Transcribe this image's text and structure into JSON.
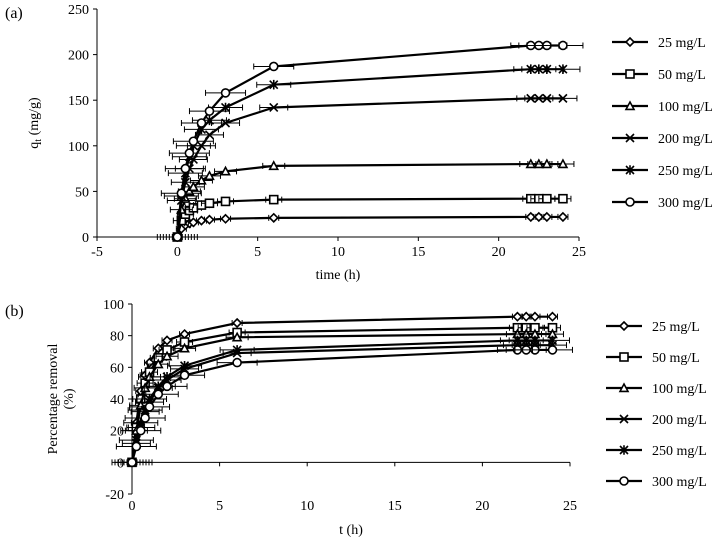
{
  "chart_data": [
    {
      "panel_label": "(a)",
      "type": "line",
      "xlabel": "time (h)",
      "ylabel": "q",
      "ylabel_sub": "t",
      "ylabel_unit": " (mg/g)",
      "xlim": [
        -5,
        25
      ],
      "ylim": [
        0,
        250
      ],
      "x_ticks": [
        -5,
        0,
        5,
        10,
        15,
        20,
        25
      ],
      "y_ticks": [
        0,
        50,
        100,
        150,
        200,
        250
      ],
      "grid": false,
      "legend_position": "right",
      "x": [
        0,
        0.25,
        0.5,
        0.75,
        1,
        1.5,
        2,
        3,
        6,
        22,
        22.5,
        23,
        24
      ],
      "series": [
        {
          "name": "25 mg/L",
          "marker": "diamond",
          "values": [
            0,
            9,
            13,
            15,
            16,
            18,
            19,
            20,
            21,
            22,
            22,
            22,
            22
          ]
        },
        {
          "name": "50 mg/L",
          "marker": "square",
          "values": [
            0,
            18,
            25,
            29,
            32,
            35,
            37,
            39,
            41,
            42,
            42,
            42,
            42
          ]
        },
        {
          "name": "100 mg/L",
          "marker": "triangle",
          "values": [
            0,
            30,
            42,
            50,
            55,
            62,
            67,
            72,
            78,
            80,
            80,
            80,
            80
          ]
        },
        {
          "name": "200 mg/L",
          "marker": "x",
          "values": [
            0,
            40,
            60,
            75,
            85,
            100,
            112,
            125,
            142,
            152,
            152,
            152,
            152
          ]
        },
        {
          "name": "250 mg/L",
          "marker": "star",
          "values": [
            0,
            45,
            70,
            88,
            100,
            118,
            128,
            142,
            167,
            184,
            184,
            184,
            184
          ]
        },
        {
          "name": "300 mg/L",
          "marker": "circle",
          "values": [
            0,
            48,
            75,
            92,
            105,
            125,
            138,
            158,
            187,
            210,
            210,
            210,
            210
          ]
        }
      ]
    },
    {
      "panel_label": "(b)",
      "type": "line",
      "xlabel": "t (h)",
      "ylabel": "Percentage removal",
      "ylabel_line2": "(%)",
      "xlim": [
        0,
        25
      ],
      "ylim": [
        -20,
        100
      ],
      "x_ticks": [
        0,
        5,
        10,
        15,
        20,
        25
      ],
      "y_ticks": [
        -20,
        0,
        20,
        40,
        60,
        80,
        100
      ],
      "grid": false,
      "legend_position": "right",
      "x": [
        0,
        0.25,
        0.5,
        0.75,
        1,
        1.5,
        2,
        3,
        6,
        22,
        22.5,
        23,
        24
      ],
      "series": [
        {
          "name": "25 mg/L",
          "marker": "diamond",
          "values": [
            0,
            25,
            45,
            55,
            63,
            72,
            77,
            81,
            88,
            92,
            92,
            92,
            92
          ]
        },
        {
          "name": "50 mg/L",
          "marker": "square",
          "values": [
            0,
            22,
            40,
            50,
            57,
            66,
            71,
            76,
            82,
            85,
            85,
            85,
            85
          ]
        },
        {
          "name": "100 mg/L",
          "marker": "triangle",
          "values": [
            0,
            20,
            36,
            47,
            54,
            62,
            67,
            72,
            79,
            81,
            81,
            81,
            81
          ]
        },
        {
          "name": "200 mg/L",
          "marker": "x",
          "values": [
            0,
            12,
            22,
            32,
            38,
            47,
            52,
            59,
            69,
            74,
            74,
            74,
            74
          ]
        },
        {
          "name": "250 mg/L",
          "marker": "star",
          "values": [
            0,
            14,
            25,
            33,
            40,
            48,
            54,
            61,
            71,
            77,
            77,
            77,
            77
          ]
        },
        {
          "name": "300 mg/L",
          "marker": "circle",
          "values": [
            0,
            10,
            20,
            28,
            35,
            43,
            48,
            55,
            63,
            71,
            71,
            71,
            71
          ]
        }
      ]
    }
  ]
}
